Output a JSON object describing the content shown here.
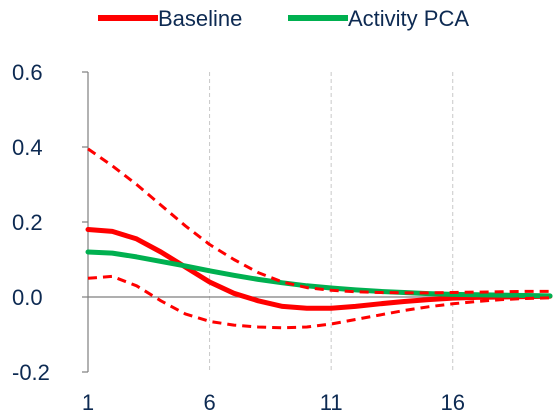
{
  "chart_data": {
    "type": "line",
    "title": "",
    "xlabel": "",
    "ylabel": "",
    "x": [
      1,
      2,
      3,
      4,
      5,
      6,
      7,
      8,
      9,
      10,
      11,
      12,
      13,
      14,
      15,
      16,
      17,
      18,
      19,
      20
    ],
    "xticks": [
      1,
      6,
      11,
      16
    ],
    "xlim": [
      1,
      20
    ],
    "ylim": [
      -0.2,
      0.6
    ],
    "yticks": [
      "-0.2",
      "0.0",
      "0.2",
      "0.4",
      "0.6"
    ],
    "grid": "vertical dashed",
    "legend": "top",
    "series": [
      {
        "name": "Baseline",
        "color": "#ff0000",
        "style": "solid",
        "values": [
          0.18,
          0.175,
          0.155,
          0.12,
          0.08,
          0.04,
          0.01,
          -0.01,
          -0.025,
          -0.03,
          -0.03,
          -0.025,
          -0.018,
          -0.012,
          -0.007,
          -0.003,
          -0.001,
          0.0,
          0.001,
          0.002
        ]
      },
      {
        "name": "Activity PCA",
        "color": "#00b050",
        "style": "solid",
        "values": [
          0.12,
          0.117,
          0.107,
          0.095,
          0.083,
          0.07,
          0.058,
          0.047,
          0.038,
          0.03,
          0.024,
          0.019,
          0.015,
          0.012,
          0.009,
          0.007,
          0.006,
          0.005,
          0.004,
          0.003
        ]
      },
      {
        "name": "",
        "color": "#ff0000",
        "style": "dashed",
        "values": [
          0.395,
          0.35,
          0.3,
          0.245,
          0.19,
          0.14,
          0.1,
          0.065,
          0.04,
          0.025,
          0.018,
          0.014,
          0.012,
          0.011,
          0.011,
          0.012,
          0.013,
          0.014,
          0.015,
          0.015
        ]
      },
      {
        "name": "",
        "color": "#ff0000",
        "style": "dashed",
        "values": [
          0.05,
          0.055,
          0.03,
          -0.01,
          -0.045,
          -0.065,
          -0.075,
          -0.08,
          -0.082,
          -0.08,
          -0.072,
          -0.06,
          -0.048,
          -0.036,
          -0.026,
          -0.018,
          -0.012,
          -0.007,
          -0.004,
          -0.002
        ]
      }
    ]
  }
}
